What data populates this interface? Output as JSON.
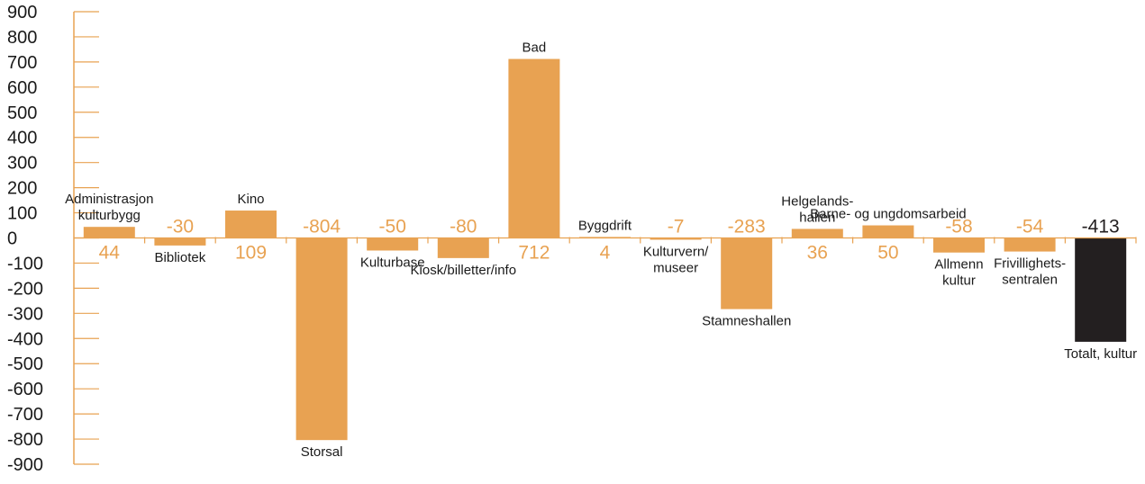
{
  "chart_data": {
    "type": "bar",
    "title": "",
    "xlabel": "",
    "ylabel": "",
    "ylim": [
      -900,
      900
    ],
    "yticks": [
      "900",
      "800",
      "700",
      "600",
      "500",
      "400",
      "300",
      "200",
      "100",
      "0",
      "-100",
      "-200",
      "-300",
      "-400",
      "-500",
      "-600",
      "-700",
      "-800",
      "-900"
    ],
    "grid": false,
    "legend": "none",
    "colors": {
      "bar": "#e8a252",
      "total_bar": "#231f20",
      "axis": "#e8a252",
      "value_label": "#e8a252",
      "total_value_label": "#231f20",
      "text": "#1a1a1a"
    },
    "categories": [
      "Administrasjon kulturbygg",
      "Bibliotek",
      "Kino",
      "Storsal",
      "Kulturbase",
      "Kiosk/billetter/info",
      "Bad",
      "Byggdrift",
      "Kulturvern/ museer",
      "Stamneshallen",
      "Helgelands- hallen",
      "Barne- og ungdomsarbeid",
      "Allmenn kultur",
      "Frivillighets- sentralen",
      "Totalt, kultur"
    ],
    "values": [
      44,
      -30,
      109,
      -804,
      -50,
      -80,
      712,
      4,
      -7,
      -283,
      36,
      50,
      -58,
      -54,
      -413
    ],
    "value_labels": [
      "44",
      "-30",
      "109",
      "-804",
      "-50",
      "-80",
      "712",
      "4",
      "-7",
      "-283",
      "36",
      "50",
      "-58",
      "-54",
      "-413"
    ],
    "category_label_lines": [
      [
        "Administrasjon",
        "kulturbygg"
      ],
      [
        "Bibliotek"
      ],
      [
        "Kino"
      ],
      [
        "Storsal"
      ],
      [
        "Kulturbase"
      ],
      [
        "Kiosk/billetter/info"
      ],
      [
        "Bad"
      ],
      [
        "Byggdrift"
      ],
      [
        "Kulturvern/",
        "museer"
      ],
      [
        "Stamneshallen"
      ],
      [
        "Helgelands-",
        "hallen"
      ],
      [
        "Barne-  og ungdomsarbeid"
      ],
      [
        "Allmenn",
        "kultur"
      ],
      [
        "Frivillighets-",
        "sentralen"
      ],
      [
        "Totalt, kultur"
      ]
    ]
  }
}
